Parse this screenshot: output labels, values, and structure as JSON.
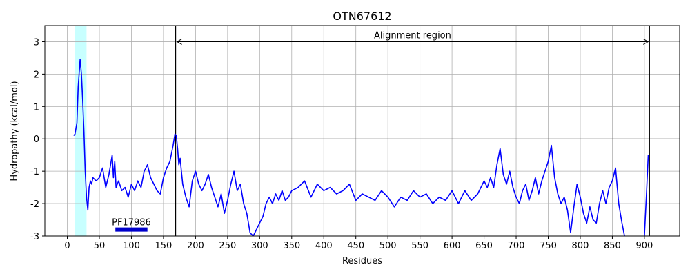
{
  "chart_data": {
    "type": "line",
    "title": "OTN67612",
    "xlabel": "Residues",
    "ylabel": "Hydropathy (kcal/mol)",
    "xlim": [
      -35,
      955
    ],
    "ylim": [
      -3,
      3.5
    ],
    "xticks": [
      0,
      50,
      100,
      150,
      200,
      250,
      300,
      350,
      400,
      450,
      500,
      550,
      600,
      650,
      700,
      750,
      800,
      850,
      900
    ],
    "yticks": [
      -3,
      -2,
      -1,
      0,
      1,
      2,
      3
    ],
    "grid": true,
    "colors": {
      "line": "#0000ff",
      "highlight": "#c8ffff",
      "domain_bar": "#0000cc",
      "vline": "#000000"
    },
    "series": [
      {
        "x": [
          10,
          12,
          15,
          17,
          20,
          22,
          24,
          26,
          28,
          30,
          32,
          34,
          36,
          38,
          40,
          45,
          50,
          55,
          60,
          65,
          70,
          72,
          74,
          76,
          78,
          80,
          85,
          90,
          95,
          100,
          105,
          110,
          115,
          120,
          125,
          130,
          135,
          140,
          145,
          150,
          155,
          160,
          165,
          168,
          170,
          172,
          174,
          176,
          178,
          180,
          185,
          190,
          195,
          200,
          205,
          210,
          215,
          220,
          225,
          230,
          235,
          240,
          245,
          250,
          255,
          260,
          265,
          270,
          275,
          280,
          285,
          290,
          295,
          300,
          305,
          310,
          315,
          320,
          325,
          330,
          335,
          340,
          345,
          350,
          360,
          370,
          380,
          390,
          400,
          410,
          420,
          430,
          440,
          450,
          460,
          470,
          480,
          490,
          500,
          510,
          520,
          530,
          540,
          550,
          560,
          570,
          580,
          590,
          600,
          610,
          620,
          630,
          640,
          650,
          655,
          660,
          665,
          670,
          675,
          680,
          685,
          690,
          695,
          700,
          705,
          710,
          715,
          720,
          725,
          730,
          735,
          740,
          745,
          750,
          755,
          758,
          760,
          765,
          770,
          775,
          780,
          785,
          790,
          795,
          800,
          805,
          810,
          815,
          820,
          825,
          830,
          835,
          840,
          845,
          850,
          855,
          860,
          865,
          870,
          875,
          880,
          885,
          890,
          895,
          900,
          903,
          906
        ],
        "y": [
          0.1,
          0.15,
          0.5,
          1.6,
          2.45,
          2.0,
          1.2,
          0.2,
          -1.0,
          -1.8,
          -2.2,
          -1.5,
          -1.3,
          -1.4,
          -1.2,
          -1.3,
          -1.2,
          -0.9,
          -1.5,
          -1.1,
          -0.5,
          -1.2,
          -0.7,
          -1.5,
          -1.4,
          -1.3,
          -1.6,
          -1.5,
          -1.8,
          -1.4,
          -1.6,
          -1.3,
          -1.5,
          -1.0,
          -0.8,
          -1.2,
          -1.4,
          -1.6,
          -1.7,
          -1.2,
          -0.9,
          -0.7,
          -0.2,
          0.15,
          0.1,
          -0.3,
          -0.8,
          -0.6,
          -1.0,
          -1.4,
          -1.8,
          -2.1,
          -1.3,
          -1.0,
          -1.4,
          -1.6,
          -1.4,
          -1.1,
          -1.5,
          -1.8,
          -2.1,
          -1.7,
          -2.3,
          -1.9,
          -1.4,
          -1.0,
          -1.6,
          -1.4,
          -2.0,
          -2.3,
          -2.9,
          -3.0,
          -2.8,
          -2.6,
          -2.4,
          -2.0,
          -1.8,
          -2.0,
          -1.7,
          -1.9,
          -1.6,
          -1.9,
          -1.8,
          -1.6,
          -1.5,
          -1.3,
          -1.8,
          -1.4,
          -1.6,
          -1.5,
          -1.7,
          -1.6,
          -1.4,
          -1.9,
          -1.7,
          -1.8,
          -1.9,
          -1.6,
          -1.8,
          -2.1,
          -1.8,
          -1.9,
          -1.6,
          -1.8,
          -1.7,
          -2.0,
          -1.8,
          -1.9,
          -1.6,
          -2.0,
          -1.6,
          -1.9,
          -1.7,
          -1.3,
          -1.5,
          -1.2,
          -1.5,
          -0.8,
          -0.3,
          -1.1,
          -1.4,
          -1.0,
          -1.5,
          -1.8,
          -2.0,
          -1.6,
          -1.4,
          -1.9,
          -1.6,
          -1.2,
          -1.7,
          -1.3,
          -1.0,
          -0.7,
          -0.2,
          -0.8,
          -1.2,
          -1.7,
          -2.0,
          -1.8,
          -2.2,
          -2.9,
          -2.1,
          -1.4,
          -1.8,
          -2.3,
          -2.6,
          -2.1,
          -2.5,
          -2.6,
          -2.0,
          -1.6,
          -2.0,
          -1.5,
          -1.3,
          -0.9,
          -2.0,
          -2.6,
          -3.1,
          -3.3,
          -3.3,
          -3.3,
          -3.2,
          -3.3,
          -3.0,
          -1.8,
          -0.5
        ]
      }
    ],
    "highlight_region": [
      12,
      30
    ],
    "vertical_lines": [
      169,
      908
    ],
    "annotation": {
      "text": "Alignment region",
      "y": 3,
      "x_start": 169,
      "x_end": 908
    },
    "domain": {
      "label": "PF17986",
      "x_start": 75,
      "x_end": 125,
      "y": -2.8
    }
  }
}
